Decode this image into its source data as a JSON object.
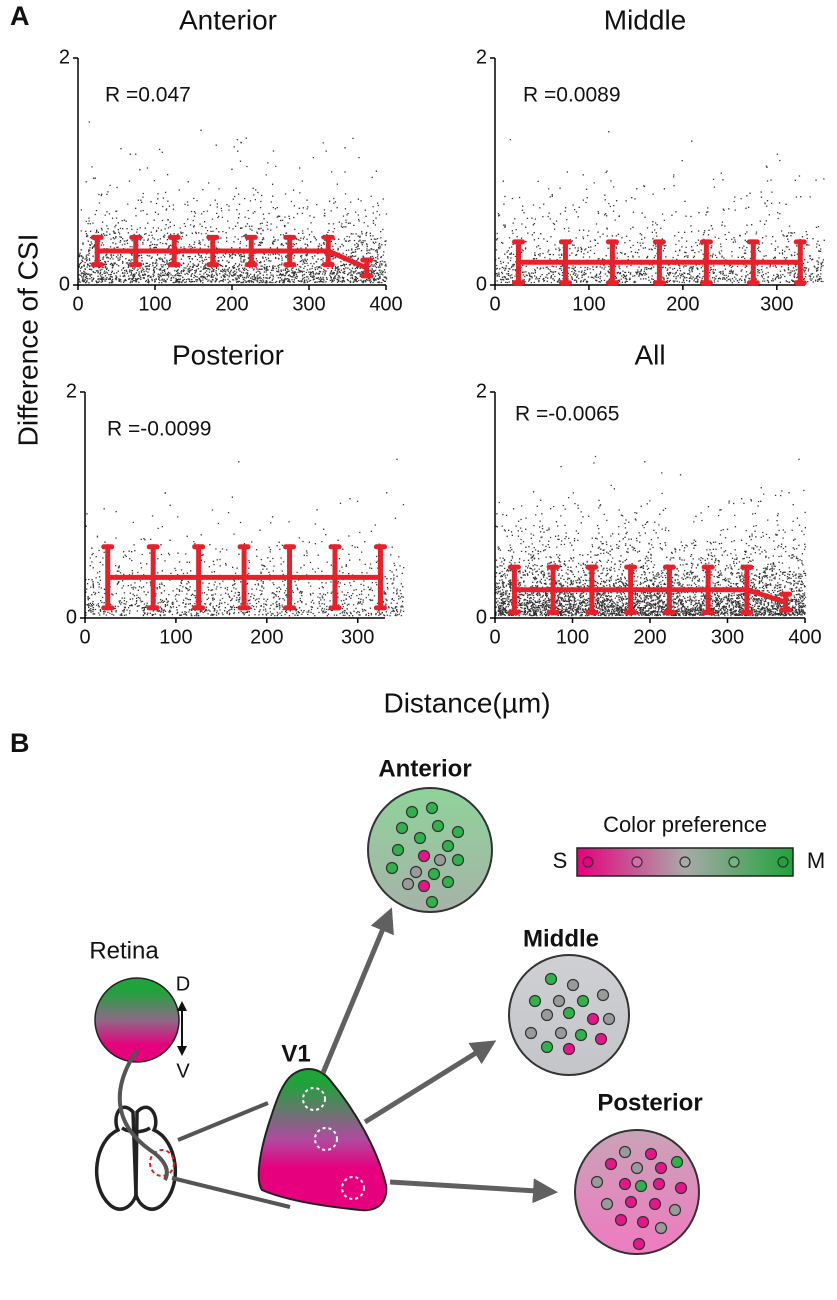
{
  "panel_labels": [
    "A",
    "B"
  ],
  "axis_labels": {
    "y": "Difference of CSI",
    "x": "Distance(µm)"
  },
  "chart_data": [
    {
      "type": "errorbar-line",
      "title": "Anterior",
      "annotation": "R =0.047",
      "color": "#e8202a",
      "x": [
        25,
        75,
        125,
        175,
        225,
        275,
        325,
        375
      ],
      "values": [
        0.3,
        0.3,
        0.3,
        0.3,
        0.3,
        0.3,
        0.3,
        0.15
      ],
      "errors": [
        0.12,
        0.12,
        0.12,
        0.12,
        0.12,
        0.12,
        0.12,
        0.07
      ],
      "xlim": [
        0,
        400
      ],
      "ylim": [
        0,
        2
      ],
      "xticks": [
        0,
        100,
        200,
        300,
        400
      ],
      "yticks": [
        0,
        2
      ]
    },
    {
      "type": "errorbar-line",
      "title": "Middle",
      "annotation": "R =0.0089",
      "color": "#e8202a",
      "x": [
        25,
        75,
        125,
        175,
        225,
        275,
        325
      ],
      "values": [
        0.2,
        0.2,
        0.2,
        0.2,
        0.2,
        0.2,
        0.2
      ],
      "errors": [
        0.18,
        0.18,
        0.18,
        0.18,
        0.18,
        0.18,
        0.18
      ],
      "xlim": [
        0,
        330
      ],
      "ylim": [
        0,
        2
      ],
      "xticks": [
        0,
        100,
        200,
        300
      ],
      "yticks": [
        0,
        2
      ]
    },
    {
      "type": "errorbar-line",
      "title": "Posterior",
      "annotation": "R =-0.0099",
      "color": "#e8202a",
      "x": [
        25,
        75,
        125,
        175,
        225,
        275,
        325
      ],
      "values": [
        0.36,
        0.36,
        0.36,
        0.36,
        0.36,
        0.36,
        0.36
      ],
      "errors": [
        0.27,
        0.27,
        0.27,
        0.27,
        0.27,
        0.27,
        0.27
      ],
      "xlim": [
        0,
        330
      ],
      "ylim": [
        0,
        2
      ],
      "xticks": [
        0,
        100,
        200,
        300
      ],
      "yticks": [
        0,
        2
      ]
    },
    {
      "type": "errorbar-line",
      "title": "All",
      "annotation": "R =-0.0065",
      "color": "#e8202a",
      "x": [
        25,
        75,
        125,
        175,
        225,
        275,
        325,
        375
      ],
      "values": [
        0.25,
        0.25,
        0.25,
        0.25,
        0.25,
        0.25,
        0.25,
        0.14
      ],
      "errors": [
        0.2,
        0.2,
        0.2,
        0.2,
        0.2,
        0.2,
        0.2,
        0.07
      ],
      "xlim": [
        0,
        400
      ],
      "ylim": [
        0,
        2
      ],
      "xticks": [
        0,
        100,
        200,
        300,
        400
      ],
      "yticks": [
        0,
        2
      ]
    }
  ],
  "diagram": {
    "regions": [
      "Anterior",
      "Middle",
      "Posterior"
    ],
    "colorbar_title": "Color preference",
    "colorbar_ends": [
      "S",
      "M"
    ],
    "retina": "Retina",
    "directions": [
      "D",
      "V"
    ],
    "area": "V1"
  }
}
